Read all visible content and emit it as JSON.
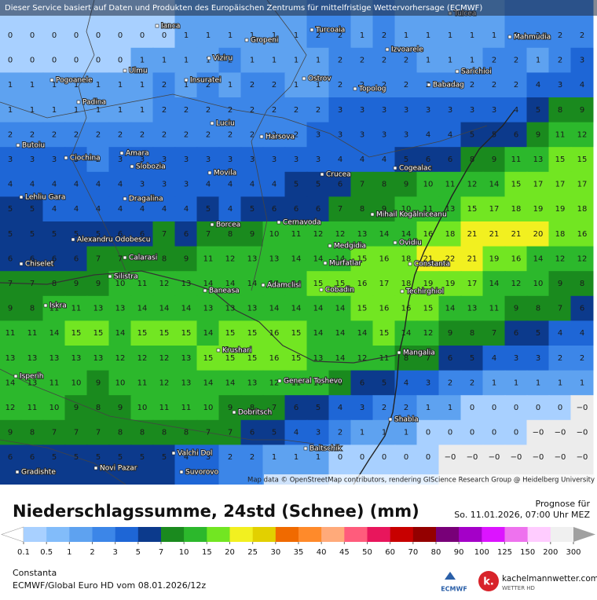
{
  "header": {
    "notice": "Dieser Service basiert auf Daten und Produkten des Europäischen Zentrums für mittelfristige Wettervorhersage (ECMWF)"
  },
  "map": {
    "grid": {
      "rows": [
        [
          0,
          0,
          0,
          0,
          0,
          0,
          0,
          0,
          1,
          1,
          1,
          1,
          1,
          1,
          2,
          2,
          1,
          2,
          1,
          1,
          1,
          1,
          1,
          2,
          2,
          2,
          2
        ],
        [
          0,
          0,
          0,
          0,
          0,
          0,
          1,
          1,
          1,
          1,
          2,
          1,
          1,
          1,
          1,
          2,
          2,
          2,
          2,
          1,
          1,
          1,
          2,
          2,
          1,
          2,
          3
        ],
        [
          1,
          1,
          1,
          1,
          1,
          1,
          1,
          2,
          1,
          2,
          1,
          2,
          2,
          1,
          1,
          2,
          2,
          2,
          2,
          2,
          2,
          2,
          2,
          2,
          4,
          3,
          4
        ],
        [
          1,
          1,
          1,
          1,
          1,
          1,
          1,
          2,
          2,
          2,
          2,
          2,
          2,
          2,
          2,
          3,
          3,
          3,
          3,
          3,
          3,
          3,
          3,
          4,
          5,
          8,
          9
        ],
        [
          2,
          2,
          2,
          2,
          2,
          2,
          2,
          2,
          2,
          2,
          2,
          2,
          2,
          2,
          3,
          3,
          3,
          3,
          3,
          4,
          4,
          5,
          5,
          6,
          9,
          11,
          12
        ],
        [
          3,
          3,
          3,
          3,
          2,
          3,
          3,
          3,
          3,
          3,
          3,
          3,
          3,
          3,
          3,
          4,
          4,
          4,
          5,
          6,
          6,
          8,
          9,
          11,
          13,
          15,
          15
        ],
        [
          4,
          4,
          4,
          4,
          4,
          4,
          3,
          3,
          3,
          4,
          4,
          4,
          4,
          5,
          5,
          6,
          7,
          8,
          9,
          10,
          11,
          12,
          14,
          15,
          17,
          17,
          17
        ],
        [
          5,
          5,
          4,
          4,
          4,
          4,
          4,
          4,
          4,
          5,
          4,
          5,
          6,
          6,
          6,
          7,
          8,
          9,
          10,
          11,
          13,
          15,
          17,
          18,
          19,
          19,
          18
        ],
        [
          5,
          5,
          5,
          5,
          5,
          6,
          6,
          7,
          6,
          7,
          8,
          9,
          10,
          11,
          12,
          12,
          13,
          14,
          14,
          16,
          18,
          21,
          21,
          21,
          20,
          18,
          16
        ],
        [
          6,
          6,
          6,
          6,
          7,
          7,
          7,
          8,
          9,
          11,
          12,
          13,
          13,
          14,
          14,
          14,
          15,
          16,
          18,
          21,
          22,
          21,
          19,
          16,
          14,
          12,
          12
        ],
        [
          7,
          7,
          8,
          9,
          9,
          10,
          11,
          12,
          13,
          14,
          14,
          14,
          14,
          14,
          15,
          15,
          16,
          17,
          18,
          19,
          19,
          17,
          14,
          12,
          10,
          9,
          8
        ],
        [
          9,
          8,
          11,
          11,
          13,
          13,
          14,
          14,
          14,
          13,
          13,
          13,
          14,
          14,
          14,
          14,
          15,
          16,
          16,
          15,
          14,
          13,
          11,
          9,
          8,
          7,
          6
        ],
        [
          11,
          11,
          14,
          15,
          15,
          14,
          15,
          15,
          15,
          14,
          15,
          15,
          16,
          15,
          14,
          14,
          14,
          15,
          14,
          12,
          9,
          8,
          7,
          6,
          5,
          4,
          4
        ],
        [
          13,
          13,
          13,
          13,
          13,
          12,
          12,
          12,
          13,
          15,
          15,
          15,
          16,
          15,
          13,
          14,
          12,
          11,
          8,
          7,
          6,
          5,
          4,
          3,
          3,
          2,
          2
        ],
        [
          14,
          13,
          11,
          10,
          9,
          10,
          11,
          12,
          13,
          14,
          14,
          13,
          12,
          11,
          10,
          8,
          6,
          5,
          4,
          3,
          2,
          2,
          1,
          1,
          1,
          1,
          1
        ],
        [
          12,
          11,
          10,
          9,
          8,
          9,
          10,
          11,
          11,
          10,
          9,
          8,
          7,
          6,
          5,
          4,
          3,
          2,
          2,
          1,
          1,
          0,
          0,
          0,
          0,
          0,
          "−0"
        ],
        [
          9,
          8,
          7,
          7,
          7,
          8,
          8,
          8,
          8,
          7,
          7,
          6,
          5,
          4,
          3,
          2,
          1,
          1,
          1,
          0,
          0,
          0,
          0,
          0,
          "−0",
          "−0",
          "−0"
        ],
        [
          6,
          6,
          5,
          5,
          5,
          5,
          5,
          5,
          4,
          3,
          2,
          2,
          1,
          1,
          1,
          0,
          0,
          0,
          0,
          0,
          "−0",
          "−0",
          "−0",
          "−0",
          "−0",
          "−0",
          "−0"
        ]
      ]
    },
    "cities": [
      "Ianca",
      "Turcoaia",
      "Tulcea",
      "Gropeni",
      "Mahmudia",
      "Viziru",
      "Izvoarele",
      "Ulmu",
      "Sarichioi",
      "Pogoanele",
      "Insuratei",
      "Ostrov",
      "Topolog",
      "Babadag",
      "Padina",
      "Luciu",
      "Harsova",
      "Butoiu",
      "Amara",
      "Ciochina",
      "Slobozia",
      "Cogealac",
      "Movila",
      "Crucea",
      "Lehliu Gara",
      "Dragalina",
      "Mihail Kogălniceanu",
      "Borcea",
      "Cernavoda",
      "Alexandru Odobescu",
      "Ovidiu",
      "Medgidia",
      "Calarasi",
      "Murfatlar",
      "Constanta",
      "Chiselet",
      "Silistra",
      "Adamclisi",
      "Baneasa",
      "Cobadin",
      "Techirghiol",
      "Iskra",
      "Krushari",
      "Mangalia",
      "General Toshevo",
      "Isperih",
      "Dobritsch",
      "Shabla",
      "Valchi Dol",
      "Baltschik",
      "Gradishte",
      "Novi Pazar",
      "Suvorovo"
    ],
    "credits": "Map data © OpenStreetMap contributors, rendering GIScience Research Group @ Heidelberg University"
  },
  "footer": {
    "title": "Niederschlagssumme, 24std (Schnee) (mm)",
    "forecast_label": "Prognose für",
    "forecast_time": "So. 11.01.2026, 07:00 Uhr MEZ",
    "location": "Constanta",
    "model_run": "ECMWF/Global Euro HD vom  08.01.2026/12z",
    "ecmwf_logo": "ECMWF",
    "site_logo_letter": "k.",
    "site": "kachelmannwetter.com",
    "site_tagline": "WETTER HD"
  },
  "legend": {
    "thresholds": [
      0.1,
      0.5,
      1,
      2,
      3,
      5,
      7,
      10,
      15,
      20,
      25,
      30,
      35,
      40,
      45,
      50,
      60,
      70,
      80,
      90,
      100,
      125,
      150,
      200,
      300
    ],
    "colors": [
      "#a8d0ff",
      "#82bcfa",
      "#5ea2f0",
      "#3c86e8",
      "#1e66d6",
      "#0c3a8c",
      "#1a8a1e",
      "#2cb82c",
      "#72e622",
      "#f2f020",
      "#e2d000",
      "#f06a00",
      "#ff8a2a",
      "#ffaa7a",
      "#ff5c7c",
      "#e8165c",
      "#c80000",
      "#940000",
      "#780078",
      "#a400c8",
      "#dc14ff",
      "#ee72ee",
      "#ffccff",
      "#f0f0f0"
    ],
    "below_color": "#ffffff",
    "above_color": "#a0a0a0",
    "negative_zero_color": "#ececec"
  }
}
